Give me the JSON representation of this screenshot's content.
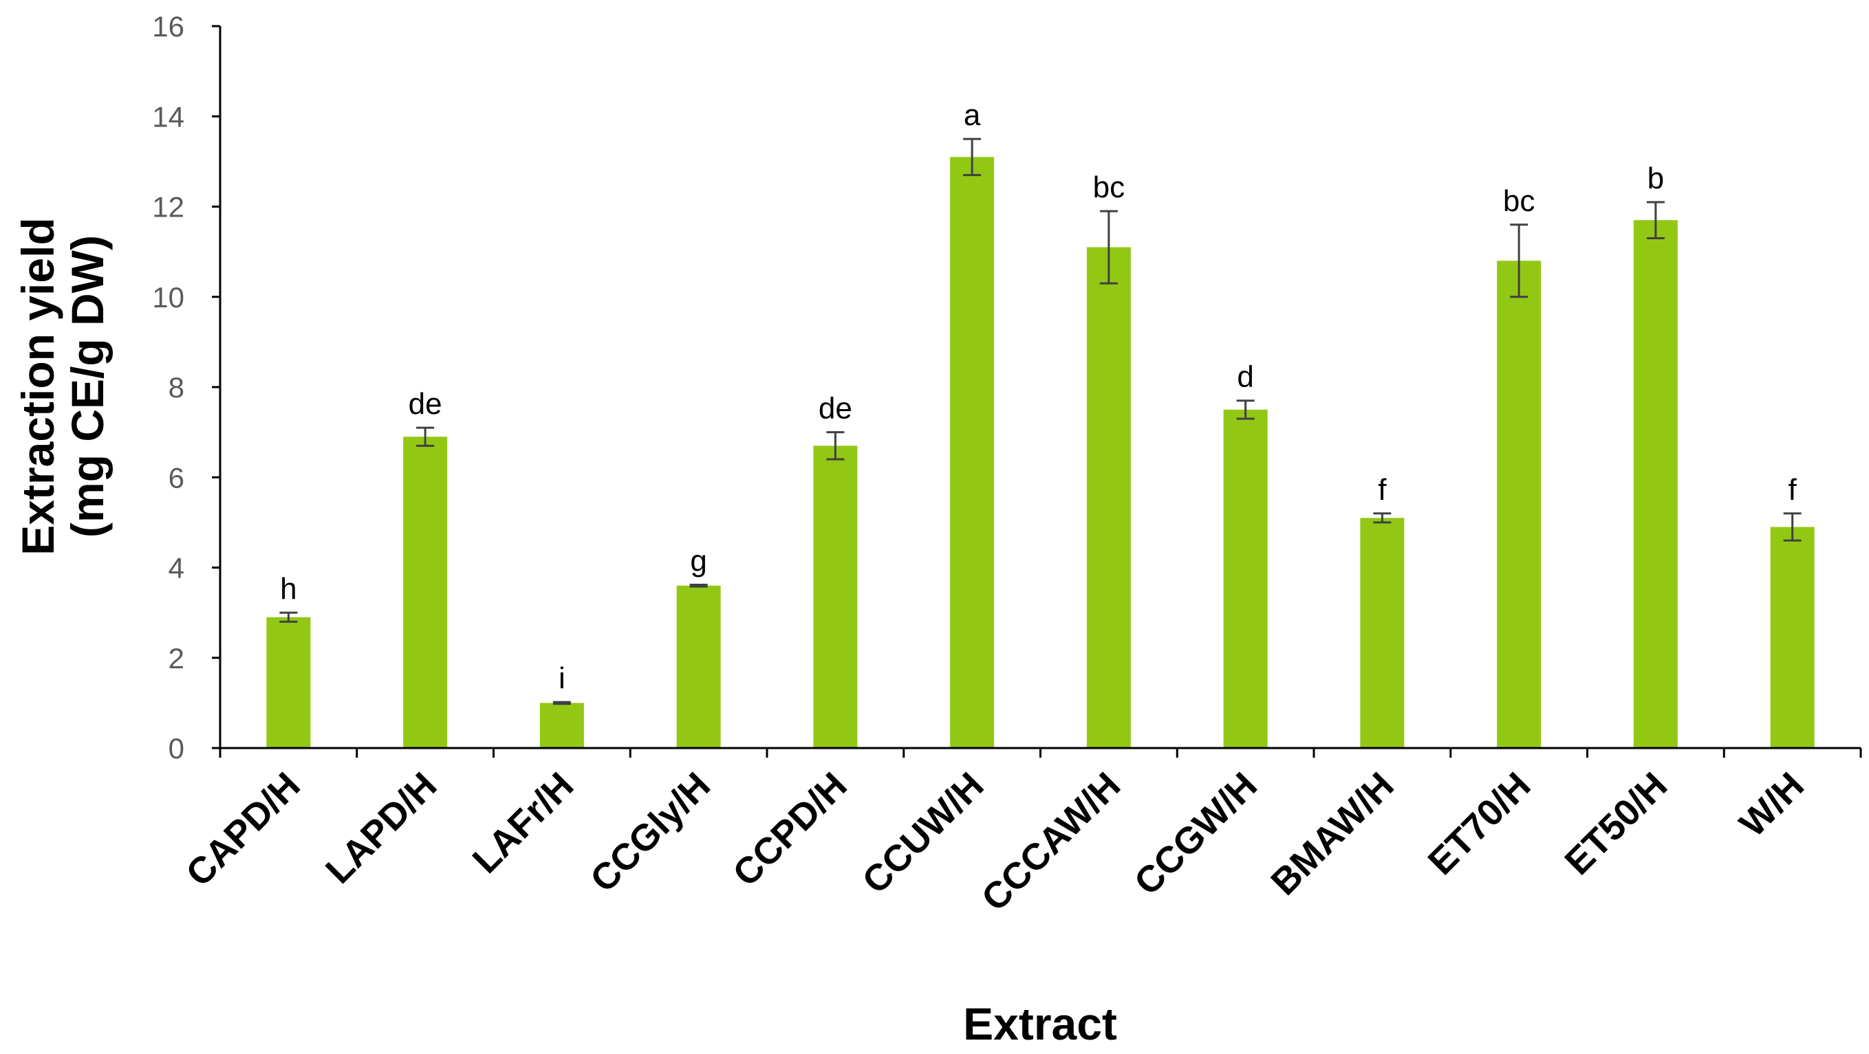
{
  "chart_data": {
    "type": "bar",
    "title": "",
    "xlabel": "Extract",
    "ylabel_line1": "Extraction yield",
    "ylabel_line2": "(mg CE/g DW)",
    "ylim": [
      0,
      16
    ],
    "yticks": [
      0,
      2,
      4,
      6,
      8,
      10,
      12,
      14,
      16
    ],
    "grid": false,
    "legend": "none",
    "bar_color": "#92C814",
    "error_color": "#404040",
    "categories": [
      "CAPD/H",
      "LAPD/H",
      "LAFr/H",
      "CCGly/H",
      "CCPD/H",
      "CCUW/H",
      "CCCAW/H",
      "CCGW/H",
      "BMAW/H",
      "ET70/H",
      "ET50/H",
      "W/H"
    ],
    "values": [
      2.9,
      6.9,
      1.0,
      3.6,
      6.7,
      13.1,
      11.1,
      7.5,
      5.1,
      10.8,
      11.7,
      4.9
    ],
    "errors": [
      0.1,
      0.2,
      0.02,
      0.02,
      0.3,
      0.4,
      0.8,
      0.2,
      0.1,
      0.8,
      0.4,
      0.3
    ],
    "significance": [
      "h",
      "de",
      "i",
      "g",
      "de",
      "a",
      "bc",
      "d",
      "f",
      "bc",
      "b",
      "f"
    ]
  }
}
